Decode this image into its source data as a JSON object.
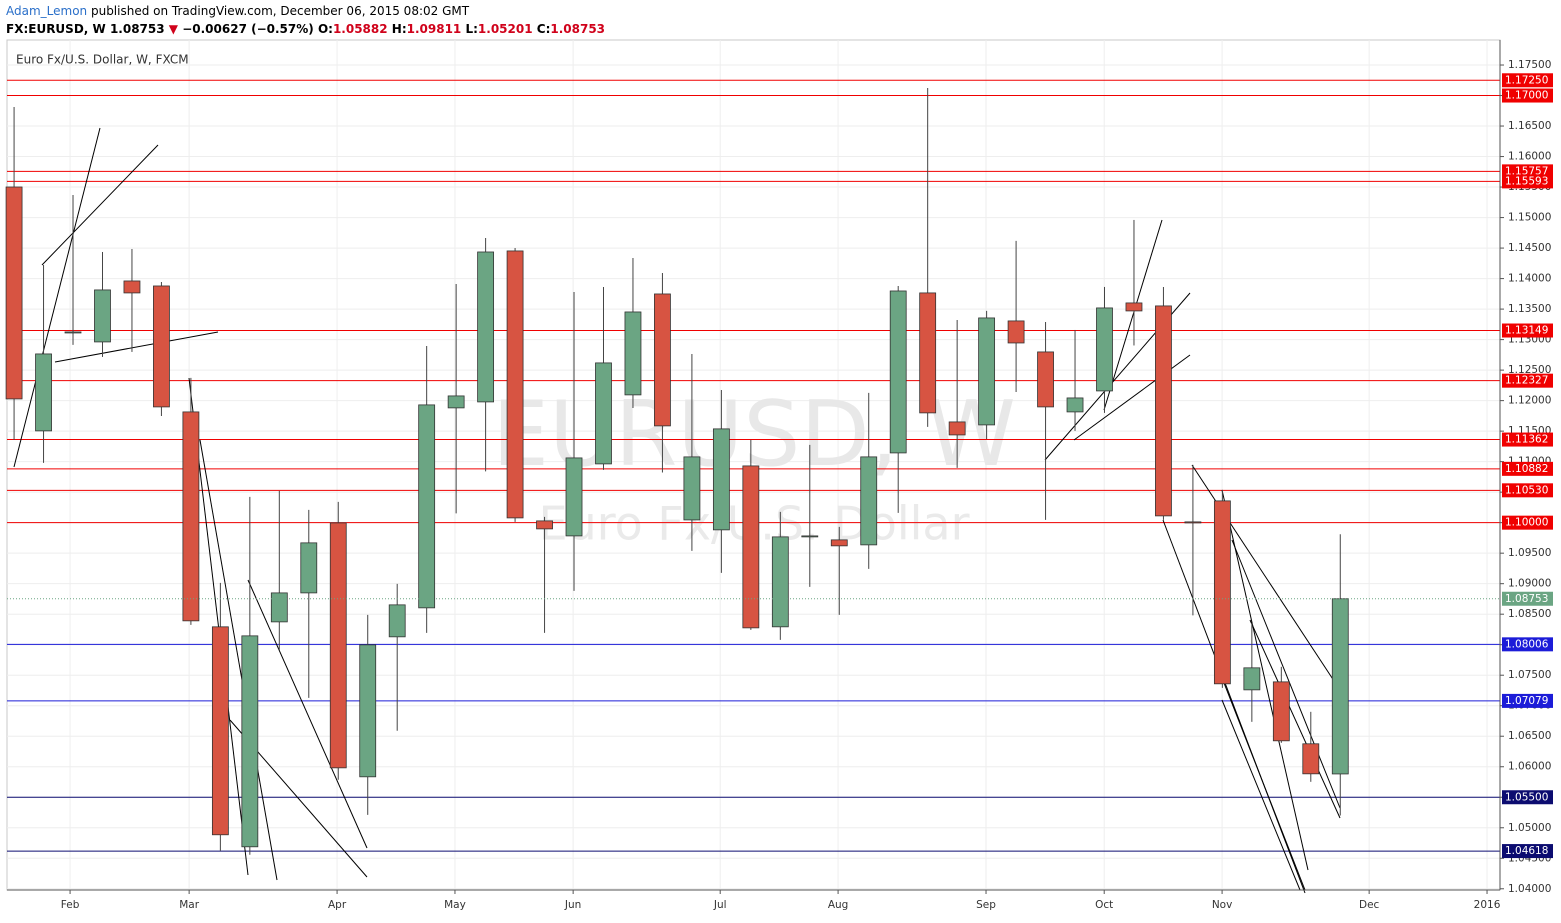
{
  "header": {
    "author": "Adam_Lemon",
    "published": " published on TradingView.com, December 06, 2015 08:02 GMT",
    "symbol": "FX:EURUSD, W",
    "last": "1.08753",
    "arrow": "▼",
    "change": "−0.00627 (−0.57%)",
    "quote": [
      {
        "label": "O:",
        "value": "1.05882"
      },
      {
        "label": "H:",
        "value": "1.09811"
      },
      {
        "label": "L:",
        "value": "1.05201"
      },
      {
        "label": "C:",
        "value": "1.08753"
      }
    ]
  },
  "chart_data": {
    "type": "candlestick",
    "title": "Euro Fx/U.S. Dollar, W, FXCM",
    "watermark": "EURUSD, W",
    "watermark_subtitle": "Euro Fx/U.S. Dollar",
    "up_color": "#6ba583",
    "down_color": "#d75442",
    "grid": true,
    "categories": [
      null,
      null,
      null,
      null,
      null,
      null,
      null,
      null,
      null,
      null,
      null,
      null,
      null,
      null,
      null,
      null,
      null,
      null,
      null,
      null,
      null,
      null,
      null,
      null,
      null,
      null,
      null,
      null,
      null,
      null,
      null,
      null,
      null,
      null,
      null,
      null,
      null,
      null,
      null,
      null,
      null,
      null,
      null,
      null,
      null,
      null
    ],
    "open": [
      1.15501,
      1.11504,
      1.13109,
      1.12962,
      1.13961,
      1.13879,
      1.11815,
      1.08293,
      1.04688,
      1.08374,
      1.08849,
      1.09996,
      1.05835,
      1.08129,
      1.08604,
      1.11881,
      1.11979,
      1.14453,
      1.10029,
      1.09783,
      1.10963,
      1.12094,
      1.13748,
      1.10045,
      1.09882,
      1.1093,
      1.08293,
      1.09767,
      1.09718,
      1.09636,
      1.11143,
      1.13765,
      1.11651,
      1.11602,
      1.13306,
      1.12798,
      1.11815,
      1.12159,
      1.13601,
      1.13552,
      1.10013,
      1.10357,
      1.0726,
      1.07391,
      1.06376,
      1.05882
    ],
    "high": [
      1.16812,
      1.14223,
      1.1537,
      1.14436,
      1.14485,
      1.13945,
      1.12372,
      1.09013,
      1.10422,
      1.10521,
      1.10209,
      1.1034,
      1.08489,
      1.08997,
      1.12896,
      1.13912,
      1.14666,
      1.14502,
      1.10095,
      1.13781,
      1.13863,
      1.14338,
      1.14092,
      1.12765,
      1.12175,
      1.11356,
      1.10177,
      1.11274,
      1.09931,
      1.12126,
      1.13879,
      1.17123,
      1.13322,
      1.1347,
      1.14617,
      1.13289,
      1.13158,
      1.13863,
      1.14961,
      1.13863,
      1.10947,
      1.10537,
      1.08358,
      1.07637,
      1.069,
      1.09811
    ],
    "low": [
      1.11356,
      1.10979,
      1.12913,
      1.12716,
      1.12798,
      1.11749,
      1.08325,
      1.04623,
      1.04557,
      1.07916,
      1.07129,
      1.05786,
      1.05212,
      1.06589,
      1.08194,
      1.10152,
      1.1084,
      1.10013,
      1.08194,
      1.08882,
      1.10865,
      1.1188,
      1.10823,
      1.09537,
      1.09177,
      1.08243,
      1.08079,
      1.08948,
      1.08489,
      1.09243,
      1.1016,
      1.11569,
      1.10898,
      1.11372,
      1.12142,
      1.10045,
      1.11504,
      1.11799,
      1.12904,
      1.10046,
      1.08481,
      1.07293,
      1.06736,
      1.06392,
      1.05753,
      1.05201
    ],
    "close": [
      1.12028,
      1.12765,
      1.13126,
      1.13814,
      1.13765,
      1.11897,
      1.08391,
      1.04885,
      1.08145,
      1.08849,
      1.09669,
      1.05982,
      1.07998,
      1.08653,
      1.1193,
      1.12077,
      1.14436,
      1.10078,
      1.09898,
      1.11061,
      1.12618,
      1.13453,
      1.11586,
      1.11078,
      1.11537,
      1.08276,
      1.09767,
      1.09783,
      1.0962,
      1.11078,
      1.13797,
      1.11799,
      1.11438,
      1.13355,
      1.12945,
      1.11897,
      1.12044,
      1.13519,
      1.1347,
      1.10111,
      1.09996,
      1.07359,
      1.07621,
      1.06425,
      1.05884,
      1.08753
    ],
    "last_color": "#6ba583",
    "levels": [
      {
        "value": 1.1725,
        "label": "1.17250",
        "color": "#f00000"
      },
      {
        "value": 1.17,
        "label": "1.17000",
        "color": "#f00000"
      },
      {
        "value": 1.15757,
        "label": "1.15757",
        "color": "#f00000"
      },
      {
        "value": 1.15593,
        "label": "1.15593",
        "color": "#f00000"
      },
      {
        "value": 1.13149,
        "label": "1.13149",
        "color": "#f00000"
      },
      {
        "value": 1.12327,
        "label": "1.12327",
        "color": "#f00000"
      },
      {
        "value": 1.11362,
        "label": "1.11362",
        "color": "#f00000"
      },
      {
        "value": 1.10882,
        "label": "1.10882",
        "color": "#f00000"
      },
      {
        "value": 1.1053,
        "label": "1.10530",
        "color": "#f00000"
      },
      {
        "value": 1.1,
        "label": "1.10000",
        "color": "#f00000"
      },
      {
        "value": 1.08006,
        "label": "1.08006",
        "color": "#1c1cd8"
      },
      {
        "value": 1.07079,
        "label": "1.07079",
        "color": "#1c1cd8"
      },
      {
        "value": 1.055,
        "label": "1.05500",
        "color": "#0c0c70"
      },
      {
        "value": 1.04618,
        "label": "1.04618",
        "color": "#0c0c70"
      }
    ],
    "xlim": [
      -0.24,
      50.42
    ],
    "xticks": [
      {
        "value": 1.9,
        "label": "Feb"
      },
      {
        "value": 5.94,
        "label": "Mar"
      },
      {
        "value": 10.96,
        "label": "Apr"
      },
      {
        "value": 14.96,
        "label": "May"
      },
      {
        "value": 18.97,
        "label": "Jun"
      },
      {
        "value": 23.96,
        "label": "Jul"
      },
      {
        "value": 27.96,
        "label": "Aug"
      },
      {
        "value": 32.98,
        "label": "Sep"
      },
      {
        "value": 36.99,
        "label": "Oct"
      },
      {
        "value": 40.99,
        "label": "Nov"
      },
      {
        "value": 45.98,
        "label": "Dec"
      },
      {
        "value": 49.98,
        "label": "2016"
      }
    ],
    "ylim": [
      1.0398,
      1.1791
    ],
    "yticks": [
      {
        "value": 1.04,
        "label": "1.04000"
      },
      {
        "value": 1.045,
        "label": "1.04500"
      },
      {
        "value": 1.05,
        "label": "1.05000"
      },
      {
        "value": 1.055,
        "label": "1.05500"
      },
      {
        "value": 1.06,
        "label": "1.06000"
      },
      {
        "value": 1.065,
        "label": "1.06500"
      },
      {
        "value": 1.07,
        "label": "1.07000"
      },
      {
        "value": 1.075,
        "label": "1.07500"
      },
      {
        "value": 1.08,
        "label": "1.08000"
      },
      {
        "value": 1.085,
        "label": "1.08500"
      },
      {
        "value": 1.09,
        "label": "1.09000"
      },
      {
        "value": 1.095,
        "label": "1.09500"
      },
      {
        "value": 1.1,
        "label": "1.10000"
      },
      {
        "value": 1.105,
        "label": "1.10500"
      },
      {
        "value": 1.11,
        "label": "1.11000"
      },
      {
        "value": 1.115,
        "label": "1.11500"
      },
      {
        "value": 1.12,
        "label": "1.12000"
      },
      {
        "value": 1.125,
        "label": "1.12500"
      },
      {
        "value": 1.13,
        "label": "1.13000"
      },
      {
        "value": 1.135,
        "label": "1.13500"
      },
      {
        "value": 1.14,
        "label": "1.14000"
      },
      {
        "value": 1.145,
        "label": "1.14500"
      },
      {
        "value": 1.15,
        "label": "1.15000"
      },
      {
        "value": 1.155,
        "label": "1.15500"
      },
      {
        "value": 1.16,
        "label": "1.16000"
      },
      {
        "value": 1.165,
        "label": "1.16500"
      },
      {
        "value": 1.17,
        "label": "1.17000"
      },
      {
        "value": 1.175,
        "label": "1.17500"
      }
    ]
  }
}
